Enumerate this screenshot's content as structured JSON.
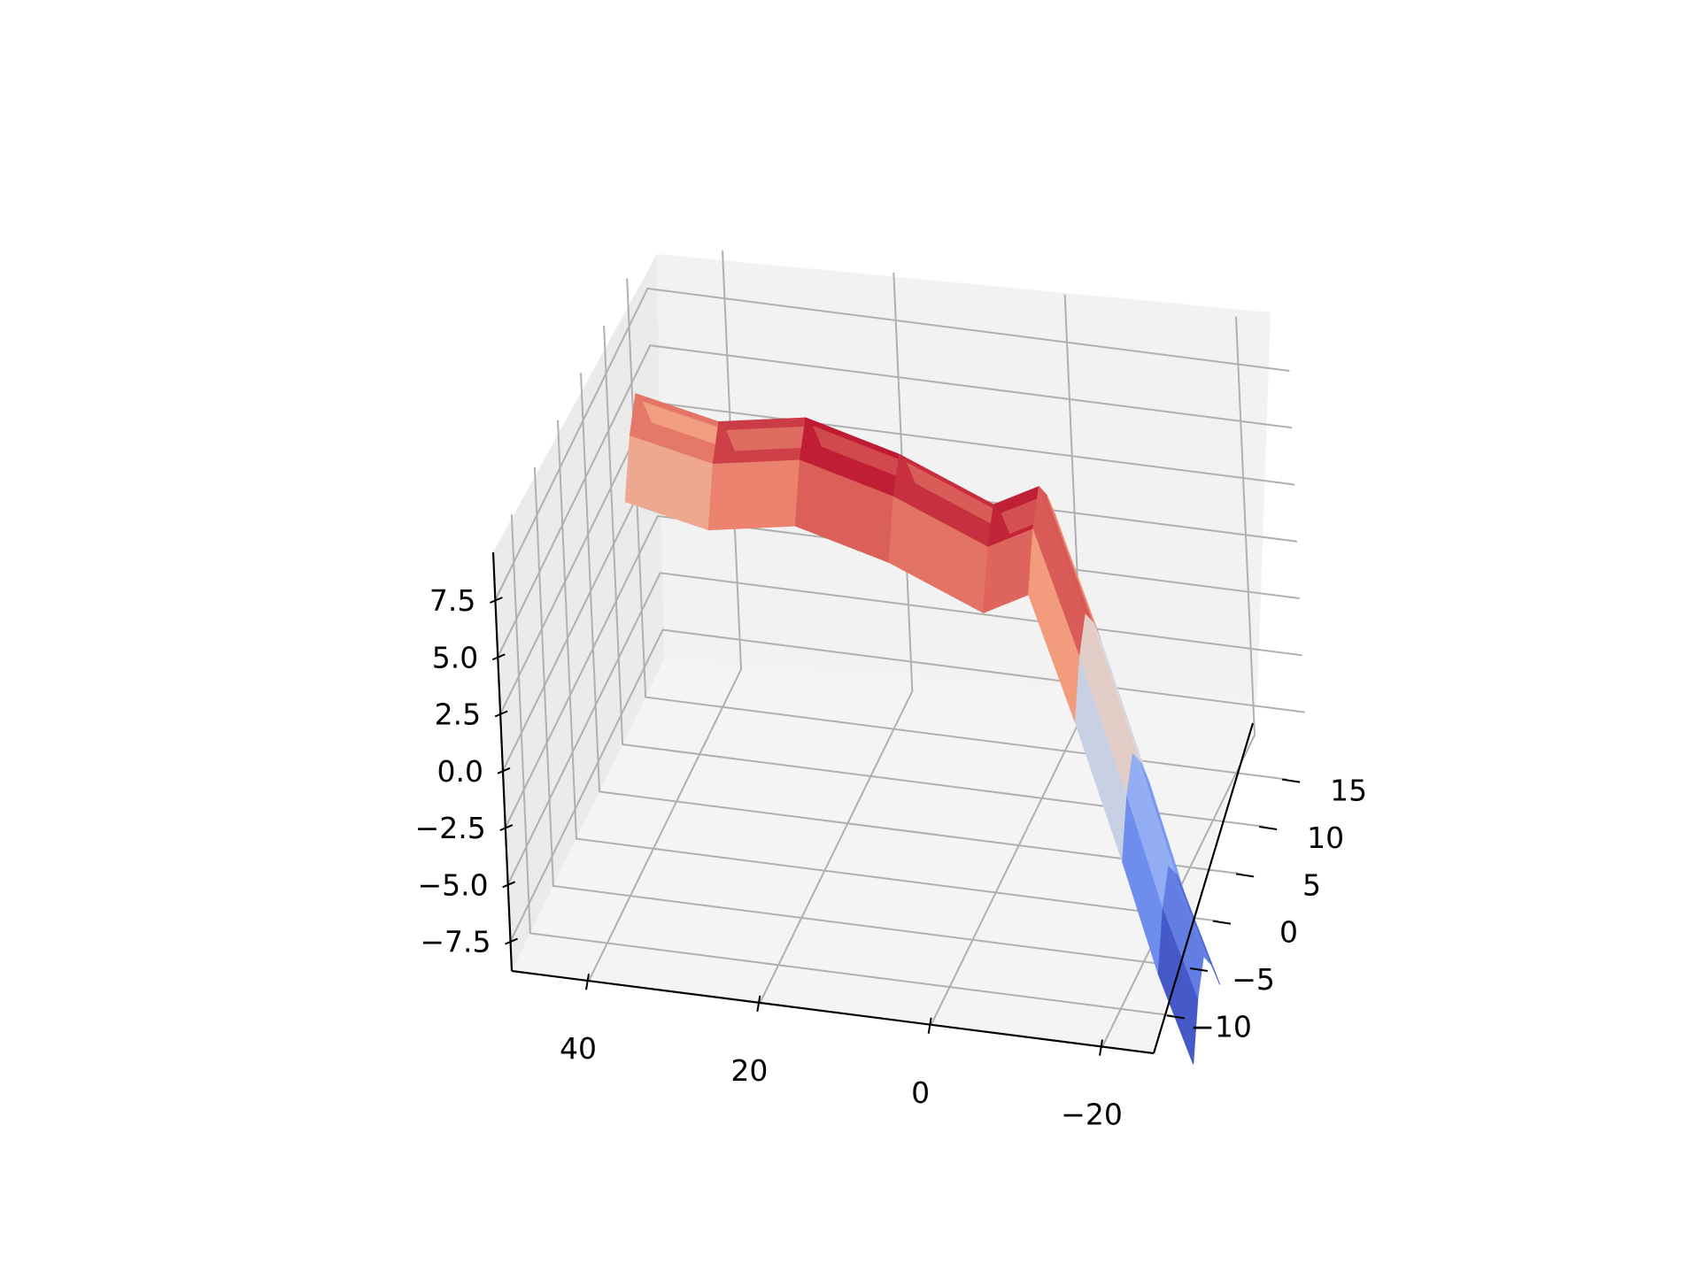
{
  "chart_data": {
    "type": "surface3d",
    "title": "",
    "xlabel": "",
    "ylabel": "",
    "zlabel": "",
    "colormap": "coolwarm",
    "colors": {
      "low": "#3b4cc0",
      "mid": "#dddddd",
      "high": "#b40426",
      "pane": "#f2f2f2",
      "grid": "#b0b0b0"
    },
    "x_ticks": [
      "40",
      "20",
      "0",
      "−20"
    ],
    "x_tick_values": [
      40,
      20,
      0,
      -20
    ],
    "y_ticks": [
      "−10",
      "−5",
      "0",
      "5",
      "10",
      "15"
    ],
    "y_tick_values": [
      -10,
      -5,
      0,
      5,
      10,
      15
    ],
    "z_ticks": [
      "−7.5",
      "−5.0",
      "−2.5",
      "0.0",
      "2.5",
      "5.0",
      "7.5"
    ],
    "z_tick_values": [
      -7.5,
      -5.0,
      -2.5,
      0.0,
      2.5,
      5.0,
      7.5
    ],
    "surface_ridge": [
      {
        "x": 48,
        "y": 14,
        "z": 5.0
      },
      {
        "x": 36,
        "y": 10,
        "z": 6.0
      },
      {
        "x": 24,
        "y": 7,
        "z": 8.0
      },
      {
        "x": 12,
        "y": 5,
        "z": 7.8
      },
      {
        "x": 0,
        "y": 3,
        "z": 7.0
      },
      {
        "x": -6,
        "y": 2,
        "z": 8.5
      },
      {
        "x": -12,
        "y": 0,
        "z": 4.0
      },
      {
        "x": -18,
        "y": -2,
        "z": -1.0
      },
      {
        "x": -24,
        "y": -6,
        "z": -4.0
      },
      {
        "x": -30,
        "y": -10,
        "z": -6.0
      }
    ]
  }
}
